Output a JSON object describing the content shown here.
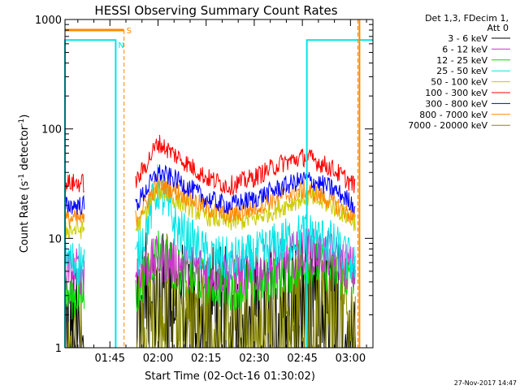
{
  "chart_data": {
    "type": "line",
    "title": "HESSI Observing Summary Count Rates",
    "xlabel": "Start Time (02-Oct-16 01:30:02)",
    "ylabel_main": "Count Rate (s",
    "ylabel_sup1": "-1",
    "ylabel_mid": " detector",
    "ylabel_sup2": "-1",
    "ylabel_end": ")",
    "y_scale": "log",
    "ylim": [
      1,
      1000
    ],
    "xlim_minutes": [
      1.0,
      97.0
    ],
    "x_ticks": [
      {
        "label": "01:45",
        "min": 15
      },
      {
        "label": "02:00",
        "min": 30
      },
      {
        "label": "02:15",
        "min": 45
      },
      {
        "label": "02:30",
        "min": 60
      },
      {
        "label": "02:45",
        "min": 75
      },
      {
        "label": "03:00",
        "min": 90
      }
    ],
    "y_ticks": [
      {
        "label": "1",
        "v": 1
      },
      {
        "label": "10",
        "v": 10
      },
      {
        "label": "100",
        "v": 100
      },
      {
        "label": "1000",
        "v": 1000
      }
    ],
    "legend_header": [
      "Det 1,3, FDecim 1,",
      "Att 0"
    ],
    "series": [
      {
        "name": "3 - 6 keV",
        "color": "#000000",
        "values": [
          1.6,
          3.0,
          3.5,
          3.0,
          2.6,
          2.4,
          2.5,
          3.0,
          3.4,
          3.0,
          2.0
        ]
      },
      {
        "name": "6 - 12 keV",
        "color": "#cc33cc",
        "values": [
          5.0,
          6.5,
          6.0,
          5.2,
          4.8,
          4.9,
          6.0,
          7.8,
          7.0,
          5.0
        ]
      },
      {
        "name": "12 - 25 keV",
        "color": "#00dd00",
        "values": [
          3.0,
          8.0,
          5.0,
          4.0,
          3.6,
          3.8,
          4.6,
          6.0,
          5.2,
          4.0
        ]
      },
      {
        "name": "25 - 50 keV",
        "color": "#00e5e5",
        "values": [
          6.0,
          30.0,
          12.0,
          7.0,
          6.2,
          6.8,
          9.0,
          11.0,
          9.0,
          5.5
        ]
      },
      {
        "name": "50 - 100 keV",
        "color": "#cccc00",
        "values": [
          12.0,
          28.0,
          22.0,
          16.0,
          14.0,
          15.0,
          19.0,
          24.0,
          20.0,
          14.0
        ]
      },
      {
        "name": "100 - 300 keV",
        "color": "#ff0000",
        "values": [
          32.0,
          75.0,
          56.0,
          36.0,
          30.0,
          36.0,
          48.0,
          56.0,
          44.0,
          30.0
        ]
      },
      {
        "name": "300 - 800 keV",
        "color": "#0000ff",
        "values": [
          20.0,
          40.0,
          34.0,
          23.0,
          20.0,
          23.0,
          29.0,
          35.0,
          29.0,
          20.0
        ]
      },
      {
        "name": "800 - 7000 keV",
        "color": "#ff8800",
        "values": [
          15.0,
          32.0,
          27.0,
          19.0,
          16.0,
          19.0,
          24.0,
          28.0,
          22.0,
          15.0
        ]
      },
      {
        "name": "7000 - 20000 keV",
        "color": "#888800",
        "values": [
          1.4,
          3.8,
          2.5,
          2.0,
          2.0,
          2.0,
          2.4,
          3.0,
          2.4,
          1.6
        ]
      }
    ],
    "saa_label": "S",
    "night_label": "N",
    "saa_color": "#ff8800",
    "night_color": "#00e5e5",
    "timestamp": "27-Nov-2017 14:47"
  }
}
